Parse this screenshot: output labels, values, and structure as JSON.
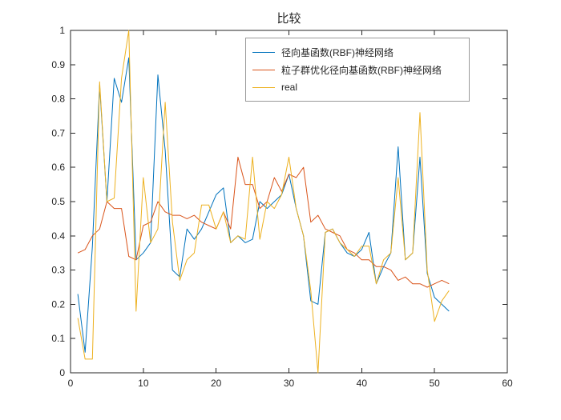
{
  "chart_data": {
    "type": "line",
    "title": "比较",
    "xlabel": "",
    "ylabel": "",
    "xlim": [
      0,
      60
    ],
    "ylim": [
      0,
      1
    ],
    "x_ticks": [
      0,
      10,
      20,
      30,
      40,
      50,
      60
    ],
    "x_tick_labels": [
      "0",
      "10",
      "20",
      "30",
      "40",
      "50",
      "60"
    ],
    "y_ticks": [
      0,
      0.1,
      0.2,
      0.3,
      0.4,
      0.5,
      0.6,
      0.7,
      0.8,
      0.9,
      1
    ],
    "y_tick_labels": [
      "0",
      "0.1",
      "0.2",
      "0.3",
      "0.4",
      "0.5",
      "0.6",
      "0.7",
      "0.8",
      "0.9",
      "1"
    ],
    "grid": false,
    "legend_position": "upper-center-right-inside",
    "axis_color": "#262626",
    "x": [
      1,
      2,
      3,
      4,
      5,
      6,
      7,
      8,
      9,
      10,
      11,
      12,
      13,
      14,
      15,
      16,
      17,
      18,
      19,
      20,
      21,
      22,
      23,
      24,
      25,
      26,
      27,
      28,
      29,
      30,
      31,
      32,
      33,
      34,
      35,
      36,
      37,
      38,
      39,
      40,
      41,
      42,
      43,
      44,
      45,
      46,
      47,
      48,
      49,
      50,
      51,
      52
    ],
    "series": [
      {
        "name": "径向基函数(RBF)神经网络",
        "color": "#0072BD",
        "values": [
          0.23,
          0.06,
          0.37,
          0.84,
          0.5,
          0.86,
          0.79,
          0.92,
          0.33,
          0.35,
          0.38,
          0.87,
          0.65,
          0.3,
          0.28,
          0.42,
          0.39,
          0.42,
          0.47,
          0.52,
          0.54,
          0.38,
          0.4,
          0.38,
          0.39,
          0.5,
          0.48,
          0.5,
          0.52,
          0.58,
          0.48,
          0.4,
          0.21,
          0.2,
          0.41,
          0.42,
          0.38,
          0.35,
          0.34,
          0.36,
          0.41,
          0.26,
          0.31,
          0.35,
          0.66,
          0.33,
          0.35,
          0.63,
          0.29,
          0.22,
          0.2,
          0.18
        ]
      },
      {
        "name": "粒子群优化径向基函数(RBF)神经网络",
        "color": "#D95319",
        "values": [
          0.35,
          0.36,
          0.4,
          0.42,
          0.5,
          0.48,
          0.48,
          0.34,
          0.33,
          0.43,
          0.44,
          0.5,
          0.47,
          0.46,
          0.46,
          0.45,
          0.46,
          0.44,
          0.43,
          0.42,
          0.47,
          0.42,
          0.63,
          0.55,
          0.55,
          0.48,
          0.5,
          0.57,
          0.53,
          0.58,
          0.57,
          0.6,
          0.44,
          0.46,
          0.42,
          0.41,
          0.4,
          0.36,
          0.35,
          0.33,
          0.33,
          0.31,
          0.31,
          0.3,
          0.27,
          0.28,
          0.26,
          0.26,
          0.25,
          0.26,
          0.27,
          0.26
        ]
      },
      {
        "name": "real",
        "color": "#EDB120",
        "values": [
          0.16,
          0.04,
          0.04,
          0.85,
          0.5,
          0.51,
          0.86,
          1.0,
          0.18,
          0.57,
          0.38,
          0.42,
          0.79,
          0.44,
          0.27,
          0.33,
          0.35,
          0.49,
          0.49,
          0.42,
          0.47,
          0.38,
          0.4,
          0.39,
          0.63,
          0.39,
          0.5,
          0.48,
          0.52,
          0.63,
          0.48,
          0.4,
          0.24,
          0.0,
          0.41,
          0.42,
          0.38,
          0.36,
          0.34,
          0.37,
          0.37,
          0.26,
          0.33,
          0.35,
          0.57,
          0.33,
          0.35,
          0.76,
          0.3,
          0.15,
          0.21,
          0.24
        ]
      }
    ]
  }
}
